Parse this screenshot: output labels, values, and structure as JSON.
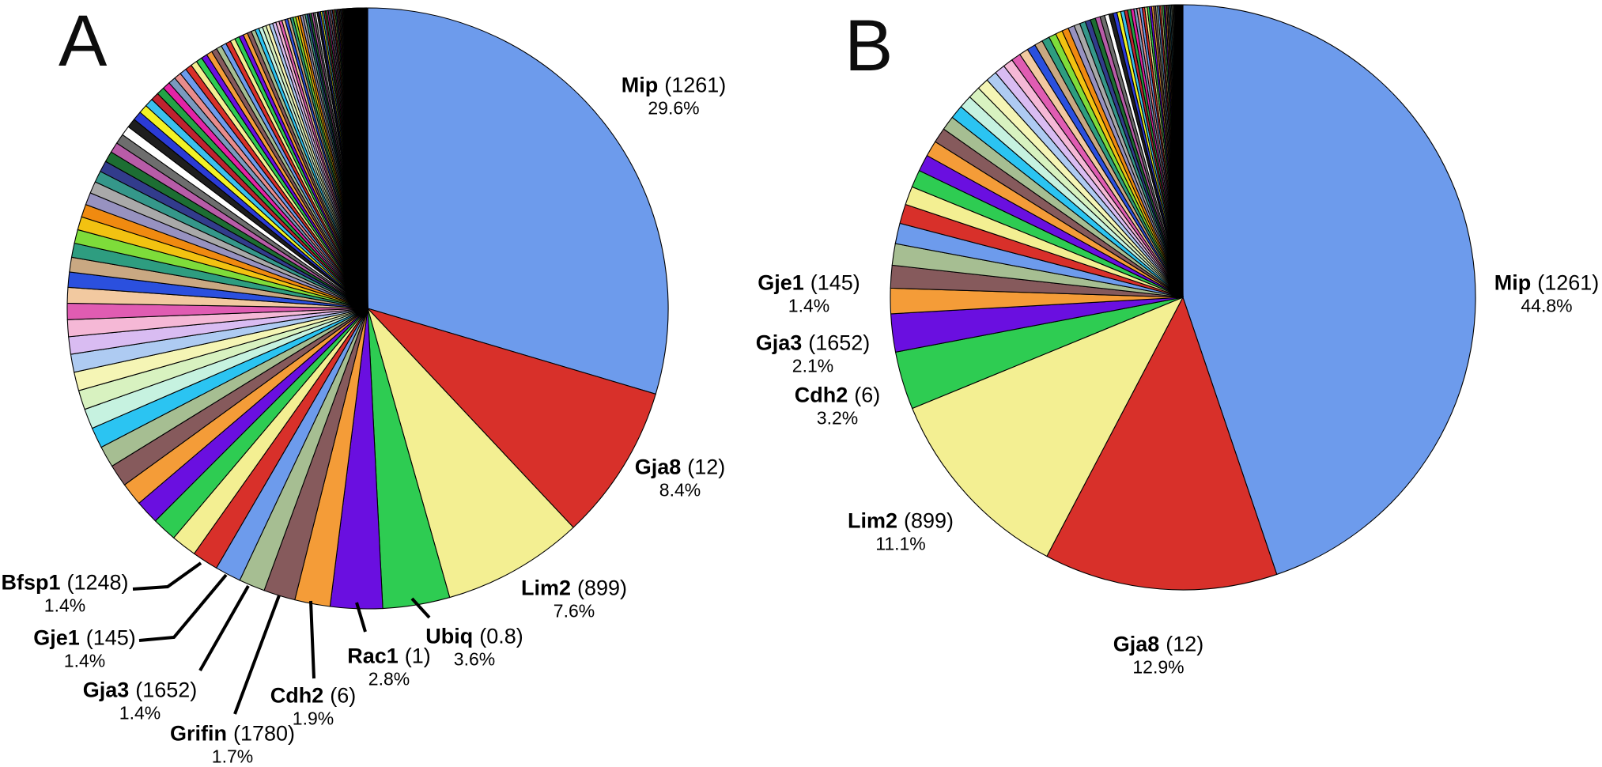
{
  "figure": {
    "background": "#ffffff",
    "text_color": "#000000",
    "outline_color": "#000000"
  },
  "chart_data": [
    {
      "type": "pie",
      "panel": "A",
      "start_angle": "12-oclock",
      "direction": "clockwise",
      "slices": [
        {
          "name": "Mip",
          "count_label": "(1261)",
          "pct": 29.6,
          "pct_label": "29.6%",
          "color": "#6D9BEC"
        },
        {
          "name": "Gja8",
          "count_label": "(12)",
          "pct": 8.4,
          "pct_label": "8.4%",
          "color": "#D8302A"
        },
        {
          "name": "Lim2",
          "count_label": "(899)",
          "pct": 7.6,
          "pct_label": "7.6%",
          "color": "#F3EF92"
        },
        {
          "name": "Ubiq",
          "count_label": "(0.8)",
          "pct": 3.6,
          "pct_label": "3.6%",
          "color": "#2ECC52"
        },
        {
          "name": "Rac1",
          "count_label": "(1)",
          "pct": 2.8,
          "pct_label": "2.8%",
          "color": "#6A0FE0"
        },
        {
          "name": "Cdh2",
          "count_label": "(6)",
          "pct": 1.9,
          "pct_label": "1.9%",
          "color": "#F49C38"
        },
        {
          "name": "Grifin",
          "count_label": "(1780)",
          "pct": 1.7,
          "pct_label": "1.7%",
          "color": "#865A5C"
        },
        {
          "name": "Gja3",
          "count_label": "(1652)",
          "pct": 1.4,
          "pct_label": "1.4%",
          "color": "#A6BE92"
        },
        {
          "name": "Gje1",
          "count_label": "(145)",
          "pct": 1.4,
          "pct_label": "1.4%",
          "color": "#6D9BEC"
        },
        {
          "name": "Bfsp1",
          "count_label": "(1248)",
          "pct": 1.4,
          "pct_label": "1.4%",
          "color": "#D8302A"
        }
      ],
      "unlabeled_remainder": {
        "total_pct": 40.2,
        "appearance": "hundreds of thin unlabeled multicolored slices shrinking to hairlines approaching 12 o'clock",
        "slice_count": 170,
        "decay": 0.966,
        "palette_start": 10
      }
    },
    {
      "type": "pie",
      "panel": "B",
      "start_angle": "12-oclock",
      "direction": "clockwise",
      "slices": [
        {
          "name": "Mip",
          "count_label": "(1261)",
          "pct": 44.8,
          "pct_label": "44.8%",
          "color": "#6D9BEC"
        },
        {
          "name": "Gja8",
          "count_label": "(12)",
          "pct": 12.9,
          "pct_label": "12.9%",
          "color": "#D8302A"
        },
        {
          "name": "Lim2",
          "count_label": "(899)",
          "pct": 11.1,
          "pct_label": "11.1%",
          "color": "#F3EF92"
        },
        {
          "name": "Cdh2",
          "count_label": "(6)",
          "pct": 3.2,
          "pct_label": "3.2%",
          "color": "#2ECC52"
        },
        {
          "name": "Gja3",
          "count_label": "(1652)",
          "pct": 2.1,
          "pct_label": "2.1%",
          "color": "#6A0FE0"
        },
        {
          "name": "Gje1",
          "count_label": "(145)",
          "pct": 1.4,
          "pct_label": "1.4%",
          "color": "#F49C38"
        }
      ],
      "unlabeled_remainder": {
        "total_pct": 24.5,
        "appearance": "many thin unlabeled multicolored slices shrinking toward 12 o'clock",
        "slice_count": 75,
        "decay": 0.95,
        "palette_start": 6
      }
    }
  ],
  "small_slice_palette": [
    "#6D9BEC",
    "#D8302A",
    "#F3EF92",
    "#2ECC52",
    "#6A0FE0",
    "#F49C38",
    "#865A5C",
    "#A6BE92",
    "#6D9BEC",
    "#D8302A",
    "#F3EF92",
    "#2ECC52",
    "#6A0FE0",
    "#F49C38",
    "#865A5C",
    "#A6BE92",
    "#2BC4F2",
    "#C6F2E0",
    "#D8F2C0",
    "#F5F5B5",
    "#AECBF2",
    "#D9BCF2",
    "#F5B8D6",
    "#E05CB2",
    "#F2C9A0",
    "#2B50DE",
    "#C9A882",
    "#2E9D80",
    "#7EDC3A",
    "#F2C211",
    "#F08A10",
    "#9792C0",
    "#A9A9A9",
    "#35978A",
    "#323C8C",
    "#1D6E33",
    "#B85CA8",
    "#6E6E6E",
    "#FFFFFF",
    "#1E1E1E",
    "#2B3BD6",
    "#F2F225",
    "#3BC0EE",
    "#BE2430",
    "#23A347",
    "#E324A5",
    "#7A9ABF",
    "#E88C8C"
  ]
}
